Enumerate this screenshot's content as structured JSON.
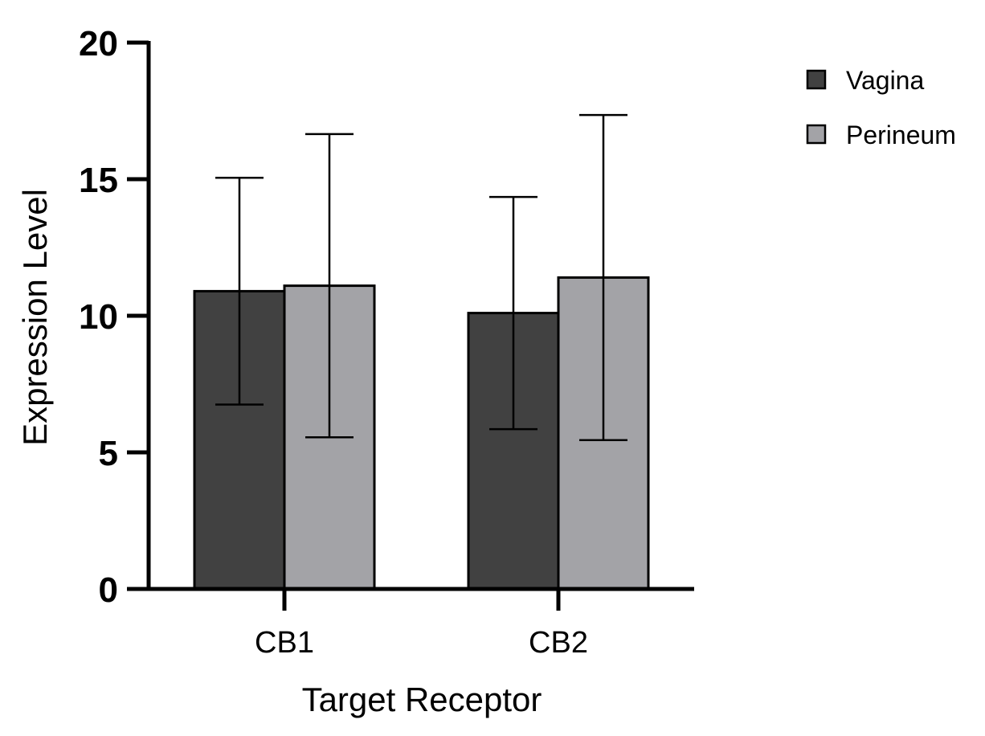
{
  "chart_data": {
    "type": "bar",
    "title": "",
    "xlabel": "Target Receptor",
    "ylabel": "Expression Level",
    "categories": [
      "CB1",
      "CB2"
    ],
    "series": [
      {
        "name": "Vagina",
        "values": [
          10.9,
          10.1
        ],
        "error": [
          4.15,
          4.25
        ],
        "color": "#414141"
      },
      {
        "name": "Perineum",
        "values": [
          11.1,
          11.4
        ],
        "error": [
          5.55,
          5.95
        ],
        "color": "#a3a3a7"
      }
    ],
    "ylim": [
      0,
      20
    ],
    "yticks": [
      "0",
      "5",
      "10",
      "15",
      "20"
    ],
    "grid": false,
    "legend_position": "top-right"
  }
}
